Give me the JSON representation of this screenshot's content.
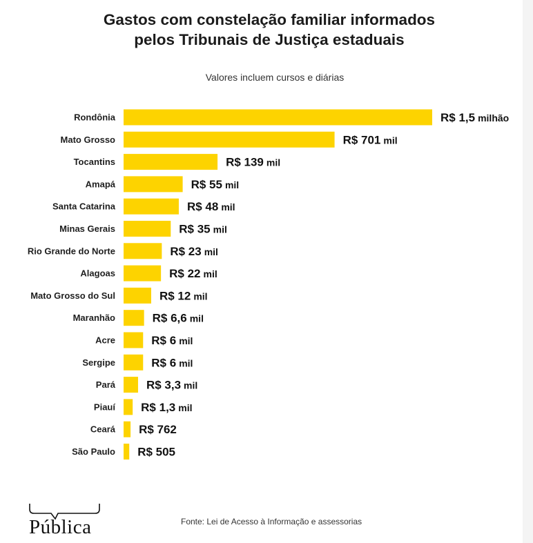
{
  "header": {
    "title_line1": "Gastos com constelação familiar informados",
    "title_line2": "pelos Tribunais de Justiça estaduais",
    "subtitle": "Valores incluem cursos e diárias"
  },
  "footer": {
    "logo": "Pública",
    "source": "Fonte: Lei de Acesso à Informação e assessorias"
  },
  "colors": {
    "bar": "#fdd300",
    "text": "#1b1b1b",
    "background": "#ffffff"
  },
  "chart_data": {
    "type": "bar",
    "orientation": "horizontal",
    "title": "Gastos com constelação familiar informados pelos Tribunais de Justiça estaduais",
    "subtitle": "Valores incluem cursos e diárias",
    "unit": "R$",
    "categories": [
      "Rondônia",
      "Mato Grosso",
      "Tocantins",
      "Amapá",
      "Santa Catarina",
      "Minas Gerais",
      "Rio Grande do Norte",
      "Alagoas",
      "Mato Grosso do Sul",
      "Maranhão",
      "Acre",
      "Sergipe",
      "Pará",
      "Piauí",
      "Ceará",
      "São Paulo"
    ],
    "values": [
      1500000,
      701000,
      139000,
      55000,
      48000,
      35000,
      23000,
      22000,
      12000,
      6600,
      6000,
      6000,
      3300,
      1300,
      762,
      505
    ],
    "labels": [
      {
        "main": "R$ 1,5",
        "unit": "milhão"
      },
      {
        "main": "R$ 701",
        "unit": "mil"
      },
      {
        "main": "R$ 139",
        "unit": "mil"
      },
      {
        "main": "R$ 55",
        "unit": "mil"
      },
      {
        "main": "R$ 48",
        "unit": "mil"
      },
      {
        "main": "R$ 35",
        "unit": "mil"
      },
      {
        "main": "R$ 23",
        "unit": "mil"
      },
      {
        "main": "R$ 22",
        "unit": "mil"
      },
      {
        "main": "R$ 12",
        "unit": "mil"
      },
      {
        "main": "R$ 6,6",
        "unit": "mil"
      },
      {
        "main": "R$ 6",
        "unit": "mil"
      },
      {
        "main": "R$ 6",
        "unit": "mil"
      },
      {
        "main": "R$ 3,3",
        "unit": "mil"
      },
      {
        "main": "R$ 1,3",
        "unit": "mil"
      },
      {
        "main": "R$ 762",
        "unit": ""
      },
      {
        "main": "R$ 505",
        "unit": ""
      }
    ],
    "scale": "non-linear (square root)",
    "grid": false,
    "legend": "none"
  }
}
